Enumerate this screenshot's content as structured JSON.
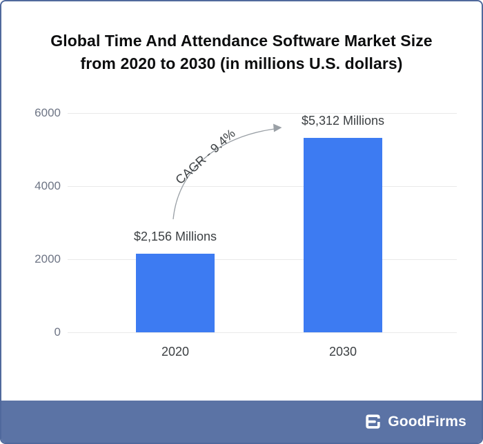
{
  "title": {
    "line1": "Global Time And Attendance Software Market Size",
    "line2": "from 2020 to 2030 (in millions U.S. dollars)"
  },
  "chart_data": {
    "type": "bar",
    "title": "Global Time And Attendance Software Market Size from 2020 to 2030 (in millions U.S. dollars)",
    "categories": [
      "2020",
      "2030"
    ],
    "values": [
      2156,
      5312
    ],
    "bar_labels": [
      "$2,156 Millions",
      "$5,312 Millions"
    ],
    "annotation": {
      "text": "CAGR - 9.4%"
    },
    "yticks": [
      0,
      2000,
      4000,
      6000
    ],
    "ylim": [
      0,
      6000
    ],
    "xlabel": "",
    "ylabel": "",
    "grid": true,
    "legend": false,
    "bar_color": "#3d7bf2"
  },
  "footer": {
    "brand": "GoodFirms"
  },
  "colors": {
    "bar": "#3d7bf2",
    "footer_bg": "#5b73a5",
    "card_border": "#50699c",
    "gridline": "#e9e9e9",
    "tick_text": "#6e7585",
    "label_text": "#3c4043",
    "title_text": "#0c0d0e",
    "arrow": "#9aa0a6",
    "brand_text": "#ffffff"
  }
}
